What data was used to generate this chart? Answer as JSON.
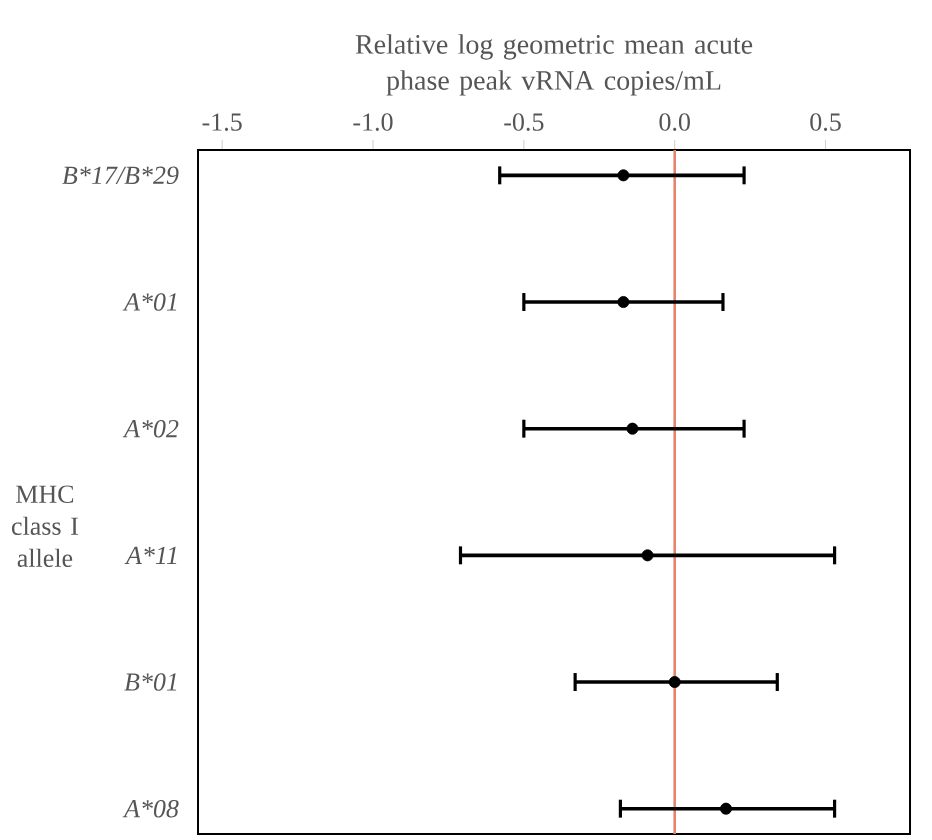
{
  "chart_data": {
    "type": "scatter",
    "orientation": "horizontal",
    "xlabel": "Relative log geometric mean acute phase peak vRNA copies/mL",
    "ylabel": "MHC class I allele",
    "categories": [
      "B*17/B*29",
      "A*01",
      "A*02",
      "A*11",
      "B*01",
      "A*08"
    ],
    "values": [
      -0.17,
      -0.17,
      -0.14,
      -0.09,
      0.0,
      0.17
    ],
    "errors": [
      [
        -0.58,
        0.23
      ],
      [
        -0.5,
        0.16
      ],
      [
        -0.5,
        0.23
      ],
      [
        -0.71,
        0.53
      ],
      [
        -0.33,
        0.34
      ],
      [
        -0.18,
        0.53
      ]
    ],
    "color": "#000000",
    "xlim": [
      -1.58,
      0.78
    ],
    "xticks": [
      {
        "value": -1.5,
        "label": "-1.5"
      },
      {
        "value": -1.0,
        "label": "-1.0"
      },
      {
        "value": -0.5,
        "label": "-0.5"
      },
      {
        "value": 0.0,
        "label": "0.0"
      },
      {
        "value": 0.5,
        "label": "0.5"
      }
    ],
    "ref_lines": [
      {
        "axis": "x",
        "value": 0,
        "color": "#e8836b"
      }
    ],
    "grid": false
  }
}
